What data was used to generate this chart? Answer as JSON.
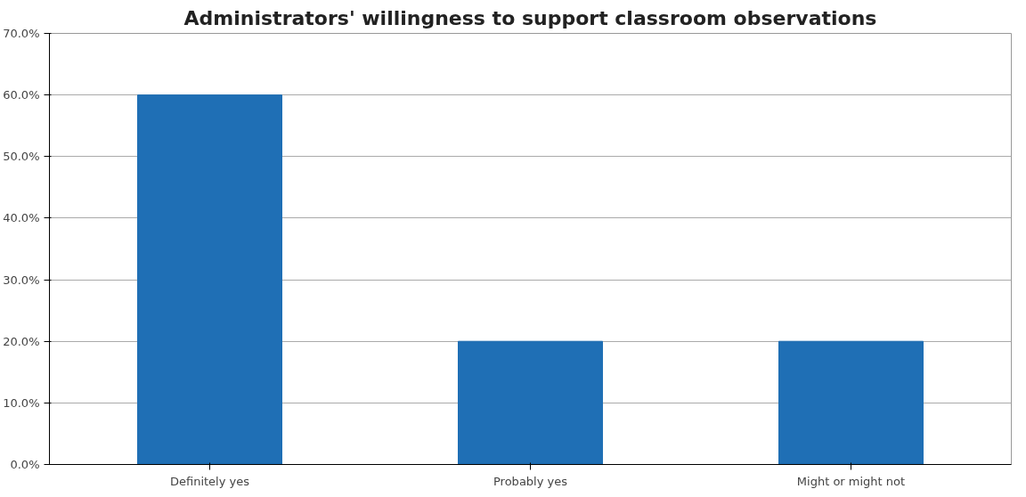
{
  "chart_data": {
    "type": "bar",
    "title": "Administrators' willingness to support classroom observations",
    "categories": [
      "Definitely yes",
      "Probably yes",
      "Might or might not"
    ],
    "values": [
      60,
      20,
      20
    ],
    "color": "#1f6fb5",
    "ylim": [
      0,
      70
    ],
    "yticks": [
      {
        "value": 0,
        "label": "0.0%"
      },
      {
        "value": 10,
        "label": "10.0%"
      },
      {
        "value": 20,
        "label": "20.0%"
      },
      {
        "value": 30,
        "label": "30.0%"
      },
      {
        "value": 40,
        "label": "40.0%"
      },
      {
        "value": 50,
        "label": "50.0%"
      },
      {
        "value": 60,
        "label": "60.0%"
      },
      {
        "value": 70,
        "label": "70.0%"
      }
    ],
    "grid": "y"
  }
}
